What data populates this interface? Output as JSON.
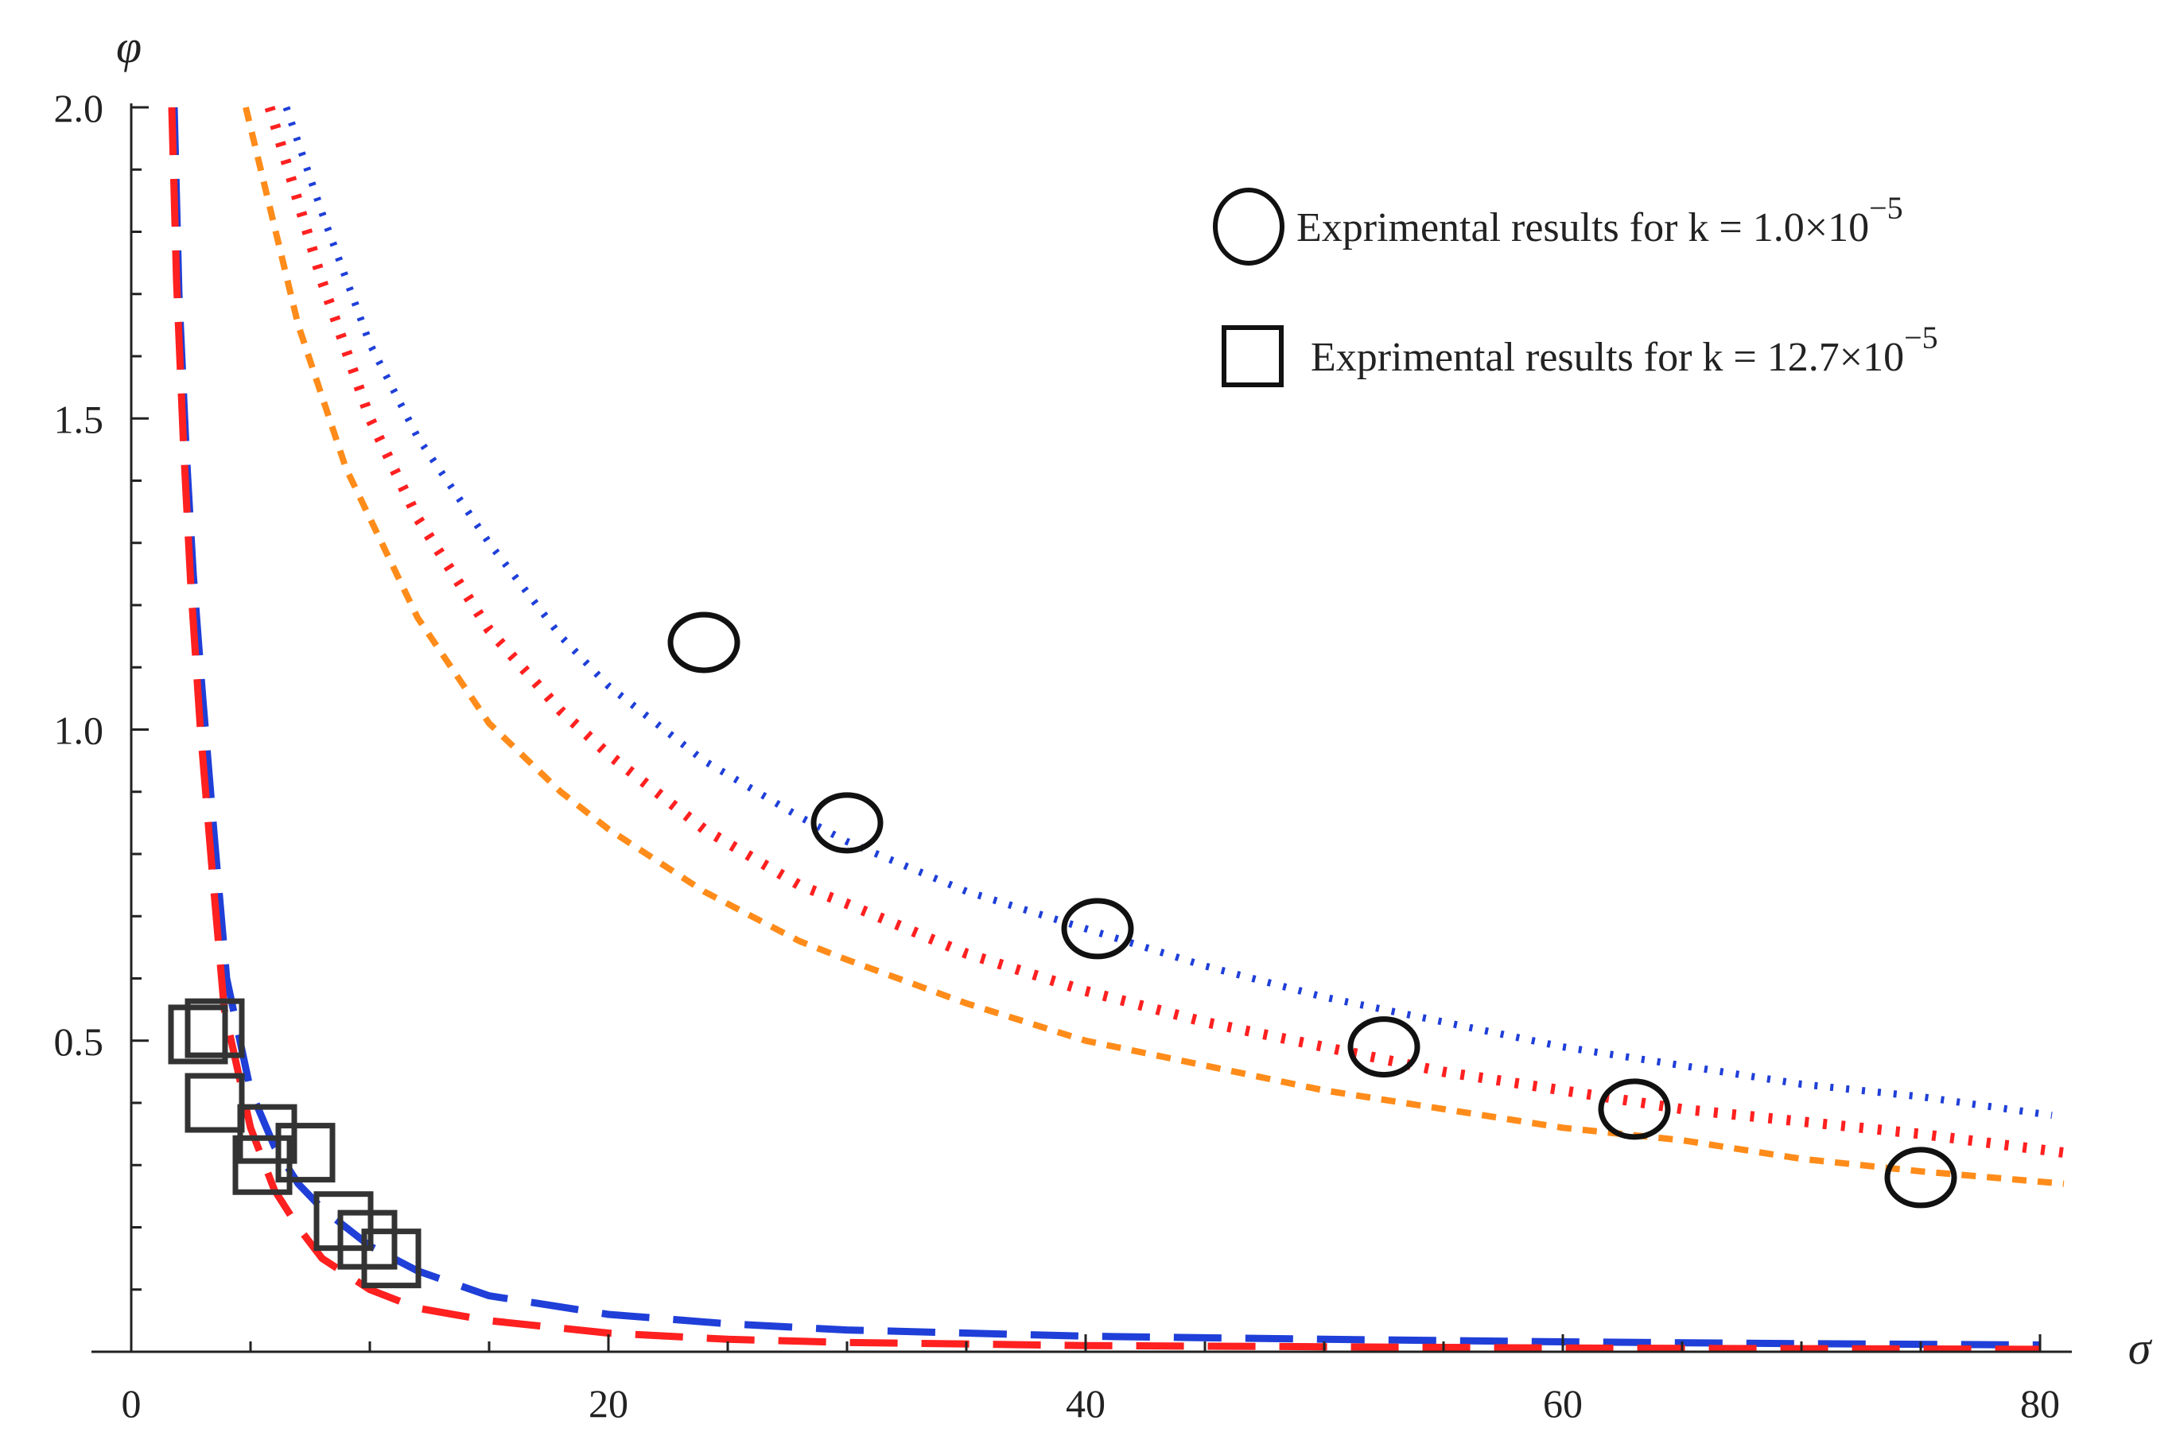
{
  "chart_data": {
    "type": "line",
    "title": "",
    "xlabel": "σ",
    "ylabel": "φ",
    "xlim": [
      0,
      82
    ],
    "ylim": [
      0,
      2.0
    ],
    "x_ticks": [
      {
        "value": 0,
        "label": "0"
      },
      {
        "value": 20,
        "label": "20"
      },
      {
        "value": 40,
        "label": "40"
      },
      {
        "value": 60,
        "label": "60"
      },
      {
        "value": 80,
        "label": "80"
      }
    ],
    "y_ticks": [
      {
        "value": 0.5,
        "label": "0.5"
      },
      {
        "value": 1.0,
        "label": "1.0"
      },
      {
        "value": 1.5,
        "label": "1.5"
      },
      {
        "value": 2.0,
        "label": "2.0"
      }
    ],
    "series": [
      {
        "name": "k = 1.0×10^-5 model (blue dotted)",
        "color": "#1f3fd8",
        "style": "dotted-fine",
        "x": [
          6.5,
          8,
          10,
          12,
          15,
          18,
          20,
          24,
          28,
          30,
          35,
          40,
          45,
          50,
          55,
          60,
          65,
          70,
          75,
          80.5
        ],
        "y": [
          2.0,
          1.83,
          1.62,
          1.47,
          1.3,
          1.15,
          1.07,
          0.95,
          0.86,
          0.82,
          0.74,
          0.68,
          0.62,
          0.57,
          0.53,
          0.49,
          0.46,
          0.43,
          0.41,
          0.38
        ]
      },
      {
        "name": "k = 1.0×10^-5 model (red dotted)",
        "color": "#ff2020",
        "style": "dotted-bold",
        "x": [
          5.8,
          8,
          10,
          12,
          15,
          18,
          20,
          24,
          28,
          30,
          35,
          40,
          45,
          50,
          55,
          60,
          65,
          70,
          75,
          81
        ],
        "y": [
          2.0,
          1.72,
          1.5,
          1.34,
          1.16,
          1.03,
          0.96,
          0.84,
          0.75,
          0.72,
          0.64,
          0.58,
          0.53,
          0.49,
          0.45,
          0.42,
          0.39,
          0.37,
          0.35,
          0.32
        ]
      },
      {
        "name": "k = 1.0×10^-5 model (orange dashed)",
        "color": "#ff8c1a",
        "style": "dashed-short",
        "x": [
          4.8,
          7,
          9,
          12,
          15,
          18,
          20,
          24,
          28,
          30,
          35,
          40,
          45,
          50,
          55,
          60,
          65,
          70,
          75,
          81
        ],
        "y": [
          2.0,
          1.65,
          1.42,
          1.18,
          1.01,
          0.9,
          0.84,
          0.74,
          0.66,
          0.63,
          0.56,
          0.5,
          0.46,
          0.42,
          0.39,
          0.36,
          0.34,
          0.31,
          0.29,
          0.27
        ]
      },
      {
        "name": "k = 12.7×10^-5 model (blue dashed)",
        "color": "#1f3fd8",
        "style": "dashed-long",
        "x": [
          1.8,
          2.0,
          2.3,
          2.6,
          3.0,
          3.5,
          4.0,
          5,
          6,
          7,
          8,
          10,
          12,
          15,
          20,
          25,
          30,
          40,
          50,
          60,
          70,
          80
        ],
        "y": [
          2.0,
          1.7,
          1.45,
          1.25,
          1.05,
          0.82,
          0.6,
          0.42,
          0.33,
          0.27,
          0.23,
          0.17,
          0.13,
          0.09,
          0.06,
          0.045,
          0.035,
          0.025,
          0.02,
          0.016,
          0.013,
          0.011
        ]
      },
      {
        "name": "k = 12.7×10^-5 model (red dashed)",
        "color": "#ff2020",
        "style": "dashed-long",
        "x": [
          1.7,
          1.9,
          2.2,
          2.5,
          2.9,
          3.4,
          3.9,
          5,
          6,
          7,
          8,
          10,
          12,
          15,
          20,
          25,
          30,
          40,
          50,
          60,
          70,
          80
        ],
        "y": [
          2.0,
          1.72,
          1.45,
          1.23,
          1.0,
          0.77,
          0.55,
          0.36,
          0.26,
          0.2,
          0.15,
          0.1,
          0.07,
          0.05,
          0.03,
          0.02,
          0.015,
          0.01,
          0.008,
          0.006,
          0.005,
          0.004
        ]
      }
    ],
    "markers": [
      {
        "name": "Exprimental results for k = 1.0×10^-5",
        "shape": "circle",
        "points": [
          [
            24,
            1.14
          ],
          [
            30,
            0.85
          ],
          [
            40.5,
            0.68
          ],
          [
            52.5,
            0.49
          ],
          [
            63,
            0.39
          ],
          [
            75,
            0.28
          ]
        ]
      },
      {
        "name": "Exprimental results for k = 12.7×10^-5",
        "shape": "square",
        "points": [
          [
            2.8,
            0.51
          ],
          [
            3.5,
            0.52
          ],
          [
            3.5,
            0.4
          ],
          [
            5.5,
            0.3
          ],
          [
            5.7,
            0.35
          ],
          [
            7.3,
            0.32
          ],
          [
            8.9,
            0.21
          ],
          [
            9.9,
            0.18
          ],
          [
            10.9,
            0.15
          ]
        ]
      }
    ],
    "legend": {
      "position": "top-right",
      "items": [
        {
          "shape": "circle",
          "text": "Exprimental results for k = 1.0×10",
          "exponent": "−5"
        },
        {
          "shape": "square",
          "text": "Exprimental results for k = 12.7×10",
          "exponent": "−5"
        }
      ]
    }
  }
}
